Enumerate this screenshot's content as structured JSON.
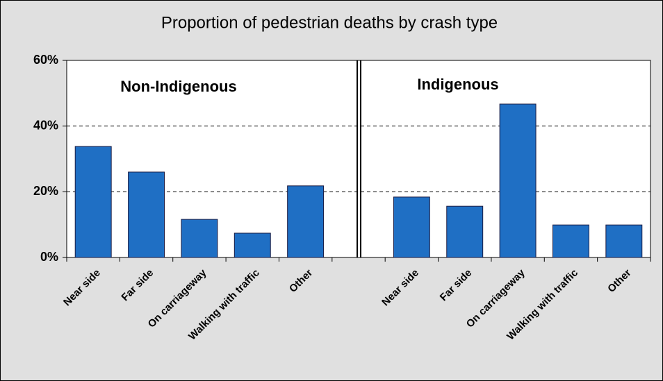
{
  "chart_data": {
    "type": "bar",
    "title": "Proportion of pedestrian deaths by crash type",
    "categories": [
      "Near side",
      "Far side",
      "On carriageway",
      "Walking with traffic",
      "Other",
      null,
      "Near side",
      "Far side",
      "On carriageway",
      "Walking with traffic",
      "Other"
    ],
    "values": [
      33.8,
      26.0,
      11.6,
      7.4,
      21.8,
      null,
      18.4,
      15.6,
      46.7,
      9.9,
      9.9
    ],
    "color": "#1f6fc4",
    "annotations": [
      "Non-Indigenous",
      "Indigenous"
    ],
    "ylim": [
      0,
      60
    ],
    "yticks": [
      {
        "value": 0,
        "label": "0%"
      },
      {
        "value": 20,
        "label": "20%"
      },
      {
        "value": 40,
        "label": "40%"
      },
      {
        "value": 60,
        "label": "60%"
      }
    ],
    "grid": true
  }
}
